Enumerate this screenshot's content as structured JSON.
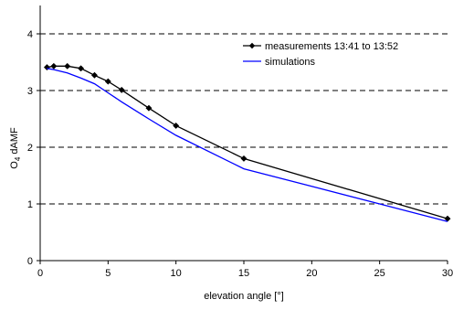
{
  "chart_data": {
    "type": "line",
    "title": "",
    "xlabel": "elevation angle [°]",
    "ylabel_main": "O",
    "ylabel_sub": "4",
    "ylabel_rest": " dAMF",
    "xlim": [
      0,
      30
    ],
    "ylim": [
      0,
      4.5
    ],
    "xticks": [
      0,
      5,
      10,
      15,
      20,
      25,
      30
    ],
    "yticks": [
      0,
      1,
      2,
      3,
      4
    ],
    "grid": "horizontal dashed",
    "legend_position": "top-right",
    "series": [
      {
        "name": "measurements 13:41 to 13:52",
        "color": "#000000",
        "marker": "diamond",
        "x": [
          0.5,
          1,
          2,
          3,
          4,
          5,
          6,
          8,
          10,
          15,
          30
        ],
        "y": [
          3.41,
          3.43,
          3.43,
          3.39,
          3.27,
          3.16,
          3.01,
          2.69,
          2.38,
          1.8,
          0.74
        ]
      },
      {
        "name": "simulations",
        "color": "#0000ff",
        "marker": "none",
        "x": [
          0.5,
          1,
          2,
          3,
          4,
          5,
          6,
          8,
          10,
          15,
          20,
          25,
          30
        ],
        "y": [
          3.39,
          3.37,
          3.31,
          3.22,
          3.12,
          2.96,
          2.8,
          2.5,
          2.21,
          1.62,
          1.31,
          1.0,
          0.69
        ]
      }
    ]
  }
}
